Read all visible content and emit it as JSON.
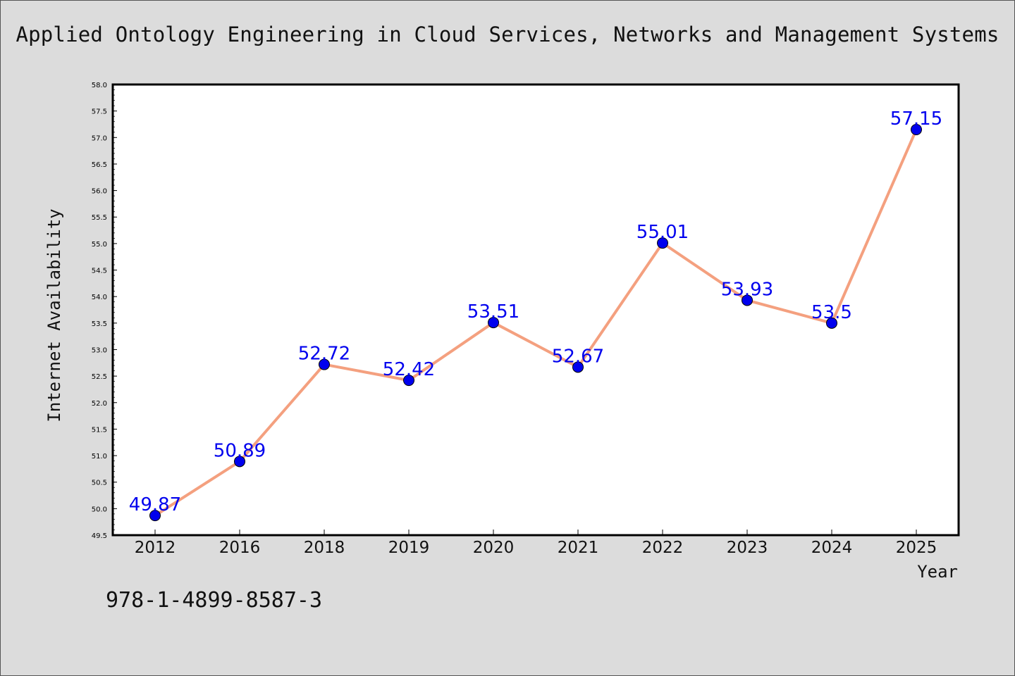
{
  "chart_data": {
    "type": "line",
    "title": "Applied Ontology Engineering in Cloud Services, Networks and Management Systems",
    "xlabel": "Year",
    "ylabel": "Internet Availability",
    "categories": [
      "2012",
      "2016",
      "2018",
      "2019",
      "2020",
      "2021",
      "2022",
      "2023",
      "2024",
      "2025"
    ],
    "values": [
      49.87,
      50.89,
      52.72,
      52.42,
      53.51,
      52.67,
      55.01,
      53.93,
      53.5,
      57.15
    ],
    "data_labels": [
      "49.87",
      "50.89",
      "52.72",
      "52.42",
      "53.51",
      "52.67",
      "55.01",
      "53.93",
      "53.5",
      "57.15"
    ],
    "ylim": [
      49.5,
      58.0
    ],
    "yticks": [
      49.5,
      50.0,
      50.5,
      51.0,
      51.5,
      52.0,
      52.5,
      53.0,
      53.5,
      54.0,
      54.5,
      55.0,
      55.5,
      56.0,
      56.5,
      57.0,
      57.5,
      58.0
    ],
    "yticks_labels": [
      "49.5",
      "50.0",
      "50.5",
      "51.0",
      "51.5",
      "52.0",
      "52.5",
      "53.0",
      "53.5",
      "54.0",
      "54.5",
      "55.0",
      "55.5",
      "56.0",
      "56.5",
      "57.0",
      "57.5",
      "58.0"
    ],
    "grid": false,
    "line_color": "#f4a07f",
    "marker_color": "#0000ee",
    "label_color": "#0000ee"
  },
  "footer": {
    "isbn": "978-1-4899-8587-3"
  }
}
